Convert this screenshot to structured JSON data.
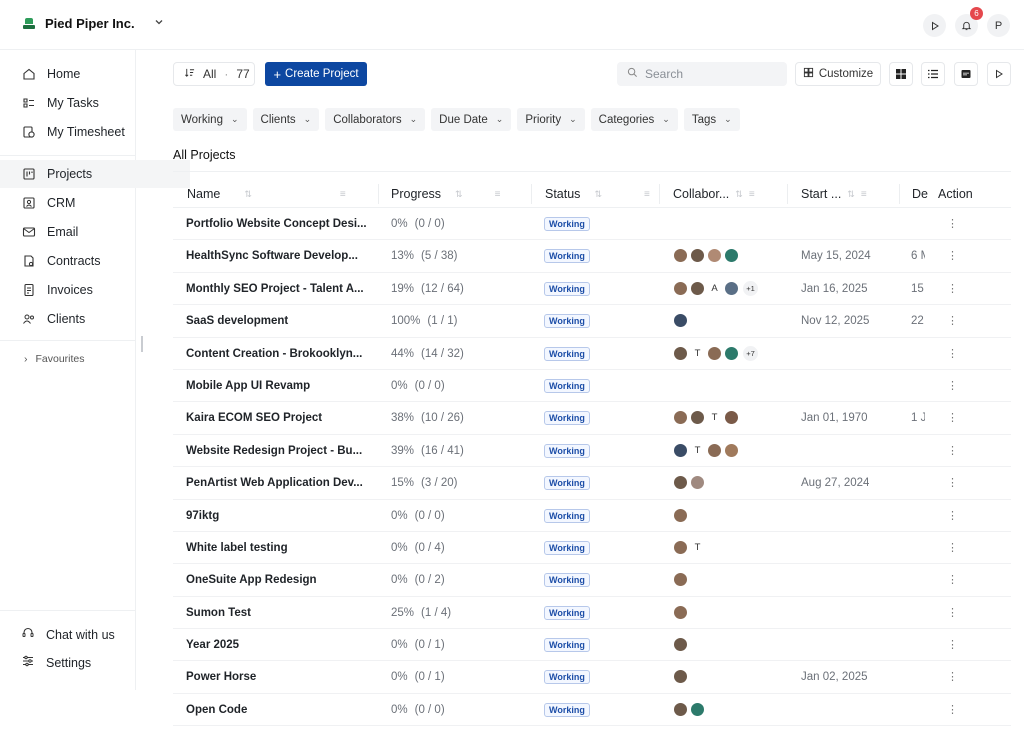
{
  "org": {
    "name": "Pied Piper Inc."
  },
  "top_right": {
    "notification_count": "6",
    "avatar_letter": "P"
  },
  "sidebar": {
    "items": [
      {
        "label": "Home",
        "icon": "home-icon"
      },
      {
        "label": "My Tasks",
        "icon": "tasks-icon"
      },
      {
        "label": "My Timesheet",
        "icon": "timesheet-icon"
      },
      {
        "label": "Projects",
        "icon": "projects-icon"
      },
      {
        "label": "CRM",
        "icon": "crm-icon"
      },
      {
        "label": "Email",
        "icon": "email-icon"
      },
      {
        "label": "Contracts",
        "icon": "contracts-icon"
      },
      {
        "label": "Invoices",
        "icon": "invoices-icon"
      },
      {
        "label": "Clients",
        "icon": "clients-icon"
      }
    ],
    "favourites": "Favourites",
    "bottom": [
      {
        "label": "Chat with us",
        "icon": "headset-icon"
      },
      {
        "label": "Settings",
        "icon": "settings-icon"
      }
    ]
  },
  "toolbar": {
    "all_label": "All",
    "all_count": "77",
    "create_label": "Create Project",
    "search_placeholder": "Search",
    "customize_label": "Customize"
  },
  "filters": [
    "Working",
    "Clients",
    "Collaborators",
    "Due Date",
    "Priority",
    "Categories",
    "Tags"
  ],
  "section_title": "All Projects",
  "columns": {
    "name": "Name",
    "progress": "Progress",
    "status": "Status",
    "collaborators": "Collabor...",
    "start": "Start ...",
    "due": "De",
    "action": "Action"
  },
  "projects": [
    {
      "name": "Portfolio Website Concept Desi...",
      "pct": "0%",
      "count": "(0 / 0)",
      "status": "Working",
      "start": "",
      "due": "",
      "collab": []
    },
    {
      "name": "HealthSync Software Develop...",
      "pct": "13%",
      "count": "(5 / 38)",
      "status": "Working",
      "start": "May 15, 2024",
      "due": "6 M",
      "collab": [
        "#8a6b55",
        "#6d5a4a",
        "#b08a74",
        "#2c7a6b"
      ]
    },
    {
      "name": "Monthly SEO Project - Talent A...",
      "pct": "19%",
      "count": "(12 / 64)",
      "status": "Working",
      "start": "Jan 16, 2025",
      "due": "15",
      "collab": [
        "#8a6b55",
        "#6d5a4a",
        "A",
        "#5a6f86"
      ],
      "more": "+1"
    },
    {
      "name": "SaaS development",
      "pct": "100%",
      "count": "(1 / 1)",
      "status": "Working",
      "start": "Nov 12, 2025",
      "due": "22",
      "collab": [
        "#3a4c66"
      ]
    },
    {
      "name": "Content Creation - Brokooklyn...",
      "pct": "44%",
      "count": "(14 / 32)",
      "status": "Working",
      "start": "",
      "due": "",
      "collab": [
        "#6d5a4a",
        "T",
        "#8a6b55",
        "#2c7a6b"
      ],
      "more": "+7"
    },
    {
      "name": "Mobile App UI Revamp",
      "pct": "0%",
      "count": "(0 / 0)",
      "status": "Working",
      "start": "",
      "due": "",
      "collab": []
    },
    {
      "name": "Kaira ECOM SEO Project",
      "pct": "38%",
      "count": "(10 / 26)",
      "status": "Working",
      "start": "Jan 01, 1970",
      "due": "1 J",
      "collab": [
        "#8a6b55",
        "#6d5a4a",
        "T",
        "#7a5a48"
      ]
    },
    {
      "name": "Website Redesign Project - Bu...",
      "pct": "39%",
      "count": "(16 / 41)",
      "status": "Working",
      "start": "",
      "due": "",
      "collab": [
        "#3a4c66",
        "T",
        "#8a6b55",
        "#a07a5c"
      ]
    },
    {
      "name": "PenArtist Web Application Dev...",
      "pct": "15%",
      "count": "(3 / 20)",
      "status": "Working",
      "start": "Aug 27, 2024",
      "due": "",
      "collab": [
        "#6d5a4a",
        "#a08a80"
      ]
    },
    {
      "name": "97iktg",
      "pct": "0%",
      "count": "(0 / 0)",
      "status": "Working",
      "start": "",
      "due": "",
      "collab": [
        "#8a6b55"
      ]
    },
    {
      "name": "White label testing",
      "pct": "0%",
      "count": "(0 / 4)",
      "status": "Working",
      "start": "",
      "due": "",
      "collab": [
        "#8a6b55",
        "T"
      ]
    },
    {
      "name": "OneSuite App Redesign",
      "pct": "0%",
      "count": "(0 / 2)",
      "status": "Working",
      "start": "",
      "due": "",
      "collab": [
        "#8a6b55"
      ]
    },
    {
      "name": "Sumon Test",
      "pct": "25%",
      "count": "(1 / 4)",
      "status": "Working",
      "start": "",
      "due": "",
      "collab": [
        "#8a6b55"
      ]
    },
    {
      "name": "Year 2025",
      "pct": "0%",
      "count": "(0 / 1)",
      "status": "Working",
      "start": "",
      "due": "",
      "collab": [
        "#6d5a4a"
      ]
    },
    {
      "name": "Power Horse",
      "pct": "0%",
      "count": "(0 / 1)",
      "status": "Working",
      "start": "Jan 02, 2025",
      "due": "",
      "collab": [
        "#6d5a4a"
      ]
    },
    {
      "name": "Open Code",
      "pct": "0%",
      "count": "(0 / 0)",
      "status": "Working",
      "start": "",
      "due": "",
      "collab": [
        "#6d5a4a",
        "#2c7a6b"
      ]
    }
  ]
}
